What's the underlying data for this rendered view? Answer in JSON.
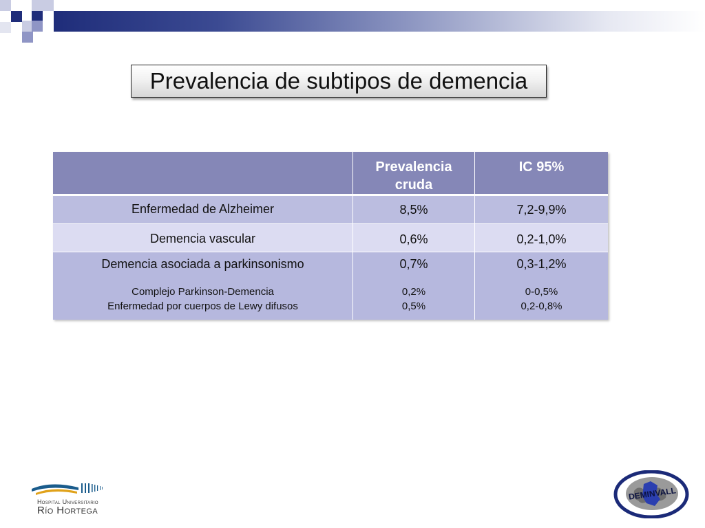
{
  "title": "Prevalencia de subtipos de demencia",
  "table": {
    "headers": [
      "",
      "Prevalencia cruda",
      "IC 95%"
    ],
    "rows": [
      {
        "label": "Enfermedad de Alzheimer",
        "prevalence": "8,5%",
        "ci": "7,2-9,9%"
      },
      {
        "label": "Demencia vascular",
        "prevalence": "0,6%",
        "ci": "0,2-1,0%"
      },
      {
        "label": "Demencia asociada a parkinsonismo",
        "prevalence": "0,7%",
        "ci": "0,3-1,2%",
        "sub": {
          "labels": [
            "Complejo Parkinson-Demencia",
            "Enfermedad por cuerpos de Lewy difusos"
          ],
          "prevalences": [
            "0,2%",
            "0,5%"
          ],
          "cis": [
            "0-0,5%",
            "0,2-0,8%"
          ]
        }
      }
    ]
  },
  "logos": {
    "hospital": {
      "line1": "Hospital Universitario",
      "line2": "Río Hortega"
    },
    "deminvall": "DEMINVALL"
  },
  "colors": {
    "header": "#8587b7",
    "row_dark": "#bbbde0",
    "row_light": "#dcdcf2",
    "top_bar": "#1f2d7a"
  }
}
